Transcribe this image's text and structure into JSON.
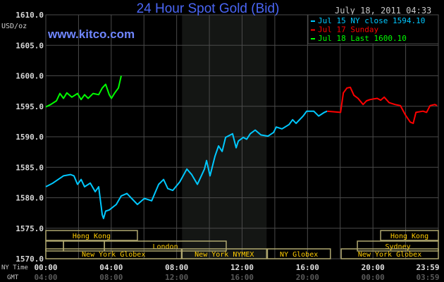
{
  "title": "24 Hour Spot Gold (Bid)",
  "timestamp": "July 18, 2011 04:33",
  "watermark": "www.kitco.com",
  "colors": {
    "title": "#4a66f5",
    "watermark": "#6f86ff",
    "jul15": "#00c8ff",
    "jul17": "#ff0000",
    "jul18": "#00ff00",
    "session": "#ffcc00",
    "session_border": "#b0a870",
    "nymex_shade": "#141614",
    "grid": "#4a4a4a"
  },
  "chart_data": {
    "type": "line",
    "ylabel": "USD/oz",
    "ylim": [
      1570,
      1610
    ],
    "yticks": [
      "1610.0",
      "1605.0",
      "1600.0",
      "1595.0",
      "1590.0",
      "1585.0",
      "1580.0",
      "1575.0",
      "1570.0"
    ],
    "xlim_hours": [
      0,
      24
    ],
    "grid": true,
    "legend_placement": "top-right",
    "x_axis_rows": [
      {
        "label": "NY Time",
        "ticks": [
          "00:00",
          "04:00",
          "08:00",
          "12:00",
          "16:00",
          "20:00",
          "23:59"
        ]
      },
      {
        "label": "GMT",
        "ticks": [
          "04:00",
          "08:00",
          "12:00",
          "16:00",
          "20:00",
          "00:00",
          "03:59"
        ]
      }
    ],
    "series": [
      {
        "name": "Jul 15 NY close 1594.10",
        "color": "#00c8ff",
        "x": [
          0,
          0.43,
          1.08,
          1.51,
          1.72,
          1.94,
          2.16,
          2.37,
          2.72,
          3.02,
          3.23,
          3.45,
          3.53,
          3.66,
          3.88,
          4.31,
          4.61,
          4.96,
          5.17,
          5.6,
          6.03,
          6.47,
          6.9,
          7.2,
          7.46,
          7.76,
          8.19,
          8.62,
          8.92,
          9.27,
          9.7,
          9.83,
          10.04,
          10.34,
          10.56,
          10.78,
          10.99,
          11.42,
          11.64,
          11.77,
          12.07,
          12.28,
          12.5,
          12.8,
          13.15,
          13.58,
          13.92,
          14.09,
          14.44,
          14.87,
          15.09,
          15.3,
          15.73,
          15.95,
          16.38,
          16.68,
          17.03,
          17.2
        ],
        "y": [
          1581.8,
          1582.4,
          1583.6,
          1583.8,
          1583.6,
          1582.2,
          1583.0,
          1581.8,
          1582.4,
          1581.0,
          1581.8,
          1577.2,
          1576.6,
          1577.8,
          1578.0,
          1578.9,
          1580.3,
          1580.7,
          1580.1,
          1578.9,
          1579.9,
          1579.5,
          1582.2,
          1583.0,
          1581.5,
          1581.2,
          1582.6,
          1584.7,
          1583.8,
          1582.2,
          1584.7,
          1586.1,
          1583.6,
          1586.8,
          1588.5,
          1587.6,
          1589.9,
          1590.5,
          1588.2,
          1589.3,
          1589.9,
          1589.6,
          1590.5,
          1591.1,
          1590.3,
          1590.1,
          1590.7,
          1591.6,
          1591.3,
          1592.0,
          1592.8,
          1592.2,
          1593.4,
          1594.2,
          1594.2,
          1593.4,
          1594.0,
          1594.2
        ]
      },
      {
        "name": "Jul 17 Sunday",
        "color": "#ff0000",
        "x": [
          17.2,
          18.02,
          18.19,
          18.41,
          18.62,
          18.84,
          19.09,
          19.4,
          19.61,
          19.83,
          20.26,
          20.47,
          20.69,
          20.99,
          21.34,
          21.68,
          21.98,
          22.28,
          22.46,
          22.63,
          23.06,
          23.28,
          23.49,
          23.79,
          23.92
        ],
        "y": [
          1594.2,
          1594.0,
          1597.2,
          1598.0,
          1598.1,
          1596.8,
          1596.3,
          1595.3,
          1595.9,
          1596.1,
          1596.3,
          1596.0,
          1596.5,
          1595.6,
          1595.3,
          1595.1,
          1593.6,
          1592.4,
          1592.2,
          1594.0,
          1594.2,
          1594.0,
          1595.1,
          1595.3,
          1595.1
        ]
      },
      {
        "name": "Jul 18 Last 1600.10",
        "color": "#00ff00",
        "x": [
          0,
          0.3,
          0.65,
          0.86,
          1.08,
          1.29,
          1.59,
          1.94,
          2.16,
          2.37,
          2.59,
          2.89,
          3.23,
          3.45,
          3.66,
          3.88,
          4.01,
          4.22,
          4.44,
          4.61
        ],
        "y": [
          1594.9,
          1595.3,
          1595.9,
          1597.1,
          1596.3,
          1597.2,
          1596.5,
          1597.1,
          1596.1,
          1596.9,
          1596.3,
          1597.1,
          1596.9,
          1598.0,
          1598.6,
          1596.9,
          1596.3,
          1597.2,
          1598.0,
          1600.0
        ]
      }
    ],
    "legend": [
      {
        "label": "Jul 15 NY close 1594.10",
        "color": "#00c8ff"
      },
      {
        "label": "Jul 17 Sunday",
        "color": "#ff0000"
      },
      {
        "label": "Jul 18 Last 1600.10",
        "color": "#00ff00"
      }
    ],
    "nymex_shade_hours": [
      8.33,
      13.5
    ],
    "sessions": [
      {
        "label": "Hong Kong",
        "row": 0,
        "start": 0,
        "end": 5.6
      },
      {
        "label": "Hong Kong",
        "row": 0,
        "end": 24,
        "start": 20.47
      },
      {
        "label": "",
        "row": 1,
        "start": 0,
        "end": 1.08
      },
      {
        "label": "",
        "row": 1,
        "start": 1.08,
        "end": 3.58
      },
      {
        "label": "London",
        "row": 1,
        "start": 3.58,
        "end": 11.03
      },
      {
        "label": "Sydney",
        "row": 1,
        "start": 19.05,
        "end": 24
      },
      {
        "label": "New York Globex",
        "row": 2,
        "start": 0,
        "end": 8.29
      },
      {
        "label": "New York NYMEX",
        "row": 2,
        "start": 8.33,
        "end": 13.5
      },
      {
        "label": "NY Globex",
        "row": 2,
        "start": 13.55,
        "end": 17.4
      },
      {
        "label": "New York Globex",
        "row": 2,
        "start": 18.06,
        "end": 24
      }
    ]
  }
}
